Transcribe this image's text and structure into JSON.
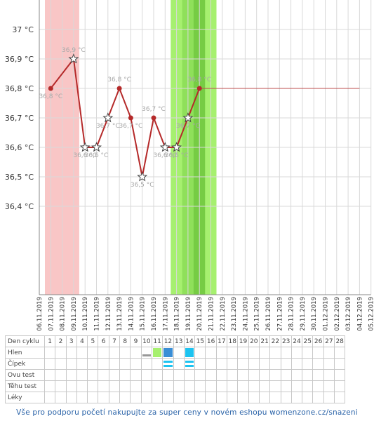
{
  "chart_data": {
    "type": "line",
    "ylim": [
      36.1,
      37.1
    ],
    "y_ticks": [
      {
        "value": 37.0,
        "label": "37 °C"
      },
      {
        "value": 36.9,
        "label": "36,9 °C"
      },
      {
        "value": 36.8,
        "label": "36,8 °C"
      },
      {
        "value": 36.7,
        "label": "36,7 °C"
      },
      {
        "value": 36.6,
        "label": "36,6 °C"
      },
      {
        "value": 36.5,
        "label": "36,5 °C"
      },
      {
        "value": 36.4,
        "label": "36,4 °C"
      }
    ],
    "x_dates": [
      "06.11.2019",
      "07.11.2019",
      "08.11.2019",
      "09.11.2019",
      "10.11.2019",
      "11.11.2019",
      "12.11.2019",
      "13.11.2019",
      "14.11.2019",
      "15.11.2019",
      "16.11.2019",
      "17.11.2019",
      "18.11.2019",
      "19.11.2019",
      "20.11.2019",
      "21.11.2019",
      "22.11.2019",
      "23.11.2019",
      "24.11.2019",
      "25.11.2019",
      "26.11.2019",
      "27.11.2019",
      "28.11.2019",
      "29.11.2019",
      "30.11.2019",
      "01.12.2019",
      "02.12.2019",
      "03.12.2019",
      "04.12.2019",
      "05.12.2019"
    ],
    "series": [
      {
        "color": "#b52a2a",
        "points": [
          {
            "x": "07.11.2019",
            "y": 36.8,
            "label": "36,8 °C",
            "marker": "dot"
          },
          {
            "x": "09.11.2019",
            "y": 36.9,
            "label": "36,9 °C",
            "marker": "star"
          },
          {
            "x": "10.11.2019",
            "y": 36.6,
            "label": "36,6 °C",
            "marker": "star"
          },
          {
            "x": "11.11.2019",
            "y": 36.6,
            "label": "36,6 °C",
            "marker": "star"
          },
          {
            "x": "12.11.2019",
            "y": 36.7,
            "label": "36,7 °C",
            "marker": "star"
          },
          {
            "x": "13.11.2019",
            "y": 36.8,
            "label": "36,8 °C",
            "marker": "dot"
          },
          {
            "x": "14.11.2019",
            "y": 36.7,
            "label": "36,7 °C",
            "marker": "dot"
          },
          {
            "x": "15.11.2019",
            "y": 36.5,
            "label": "36,5 °C",
            "marker": "star"
          },
          {
            "x": "16.11.2019",
            "y": 36.7,
            "label": "36,7 °C",
            "marker": "dot"
          },
          {
            "x": "17.11.2019",
            "y": 36.6,
            "label": "36,6 °C",
            "marker": "star"
          },
          {
            "x": "18.11.2019",
            "y": 36.6,
            "label": "36,6 °C",
            "marker": "star"
          },
          {
            "x": "19.11.2019",
            "y": 36.7,
            "label": "36,7 °C",
            "marker": "star"
          },
          {
            "x": "20.11.2019",
            "y": 36.8,
            "label": "36,8 °C",
            "marker": "dot"
          }
        ]
      }
    ],
    "reference_line": {
      "y": 36.8,
      "from": "20.11.2019",
      "to": "04.12.2019",
      "color": "#b52a2a"
    },
    "bands": [
      {
        "from": "06.11.2019",
        "to": "09.11.2019",
        "color": "#f9c6c6"
      },
      {
        "from": "17.11.2019",
        "to": "21.11.2019",
        "color": "#a6f06f"
      },
      {
        "from": "18.11.2019",
        "to": "20.11.2019",
        "color": "#8fe05a"
      },
      {
        "from": "19.11.2019",
        "to": "20.11.2019",
        "color": "#76cc44"
      }
    ],
    "grid": true
  },
  "table": {
    "header_label": "Den cyklu",
    "days": [
      "1",
      "2",
      "3",
      "4",
      "5",
      "6",
      "7",
      "8",
      "9",
      "10",
      "11",
      "12",
      "13",
      "14",
      "15",
      "16",
      "17",
      "18",
      "19",
      "20",
      "21",
      "22",
      "23",
      "24",
      "25",
      "26",
      "27",
      "28"
    ],
    "rows": [
      {
        "label": "Hlen",
        "marks": [
          {
            "day": "10",
            "color": "#999999",
            "shape": "line"
          },
          {
            "day": "11",
            "color": "#a6f06f",
            "shape": "block"
          },
          {
            "day": "12",
            "color": "#3a8ed6",
            "shape": "block"
          },
          {
            "day": "14",
            "color": "#1ec3f0",
            "shape": "block"
          }
        ]
      },
      {
        "label": "Čípek",
        "marks": [
          {
            "day": "12",
            "color": "#1ec3f0",
            "shape": "bars"
          },
          {
            "day": "14",
            "color": "#1ec3f0",
            "shape": "bars"
          }
        ]
      },
      {
        "label": "Ovu test",
        "marks": []
      },
      {
        "label": "Těhu test",
        "marks": []
      },
      {
        "label": "Léky",
        "marks": []
      }
    ]
  },
  "footer": "Vše pro podporu početí nakupujte za super ceny v novém eshopu womenzone.cz/snazeni"
}
